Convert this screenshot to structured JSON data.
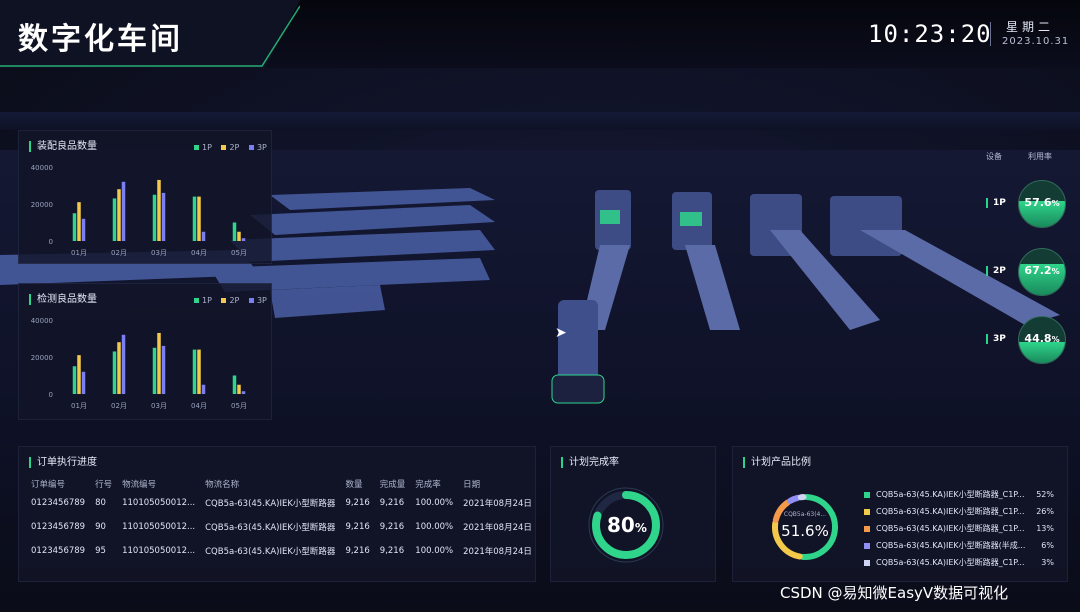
{
  "header": {
    "title": "数字化车间",
    "time": "10:23:20",
    "weekday": "星期二",
    "date": "2023.10.31"
  },
  "assembly_panel": {
    "title": "装配良品数量",
    "legend": [
      "1P",
      "2P",
      "3P"
    ]
  },
  "inspection_panel": {
    "title": "检测良品数量",
    "legend": [
      "1P",
      "2P",
      "3P"
    ]
  },
  "colors": {
    "p1": "#2fd58b",
    "p2": "#f3c94a",
    "p3": "#7b7ff2",
    "accent": "#2bd48b"
  },
  "chart_data": [
    {
      "type": "bar",
      "title": "装配良品数量",
      "categories": [
        "01月",
        "02月",
        "03月",
        "04月",
        "05月"
      ],
      "ylim": [
        0,
        40000
      ],
      "yticks": [
        "0",
        "20000",
        "40000"
      ],
      "series": [
        {
          "name": "1P",
          "values": [
            15000,
            23000,
            25000,
            24000,
            10000
          ]
        },
        {
          "name": "2P",
          "values": [
            21000,
            28000,
            33000,
            24000,
            5000
          ]
        },
        {
          "name": "3P",
          "values": [
            12000,
            32000,
            26000,
            5000,
            1500
          ]
        }
      ],
      "legend": "top-right",
      "grid": false
    },
    {
      "type": "bar",
      "title": "检测良品数量",
      "categories": [
        "01月",
        "02月",
        "03月",
        "04月",
        "05月"
      ],
      "ylim": [
        0,
        40000
      ],
      "yticks": [
        "0",
        "20000",
        "40000"
      ],
      "series": [
        {
          "name": "1P",
          "values": [
            15000,
            23000,
            25000,
            24000,
            10000
          ]
        },
        {
          "name": "2P",
          "values": [
            21000,
            28000,
            33000,
            24000,
            5000
          ]
        },
        {
          "name": "3P",
          "values": [
            12000,
            32000,
            26000,
            5000,
            1500
          ]
        }
      ],
      "legend": "top-right",
      "grid": false
    }
  ],
  "utilization": {
    "col_device": "设备",
    "col_rate": "利用率",
    "items": [
      {
        "label": "1P",
        "value": "57.6",
        "unit": "%",
        "level": 0.576
      },
      {
        "label": "2P",
        "value": "67.2",
        "unit": "%",
        "level": 0.672
      },
      {
        "label": "3P",
        "value": "44.8",
        "unit": "%",
        "level": 0.448
      }
    ]
  },
  "orders": {
    "title": "订单执行进度",
    "columns": [
      "订单编号",
      "行号",
      "物流编号",
      "物流名称",
      "数量",
      "完成量",
      "完成率",
      "日期"
    ],
    "rows": [
      [
        "0123456789",
        "80",
        "110105050012...",
        "CQB5a-63(45.KA)IEK小型断路器",
        "9,216",
        "9,216",
        "100.00%",
        "2021年08月24日"
      ],
      [
        "0123456789",
        "90",
        "110105050012...",
        "CQB5a-63(45.KA)IEK小型断路器",
        "9,216",
        "9,216",
        "100.00%",
        "2021年08月24日"
      ],
      [
        "0123456789",
        "95",
        "110105050012...",
        "CQB5a-63(45.KA)IEK小型断路器",
        "9,216",
        "9,216",
        "100.00%",
        "2021年08月24日"
      ]
    ]
  },
  "plan_completion": {
    "title": "计划完成率",
    "value": "80",
    "unit": "%",
    "level": 0.8
  },
  "product_ratio": {
    "title": "计划产品比例",
    "center_value": "51.6%",
    "center_label": "CQB5a-63(4...",
    "items": [
      {
        "name": "CQB5a-63(45.KA)IEK小型断路器_C1P...",
        "pct": "52%",
        "value": 52,
        "color": "#2fd58b"
      },
      {
        "name": "CQB5a-63(45.KA)IEK小型断路器_C1P...",
        "pct": "26%",
        "value": 26,
        "color": "#f3c94a"
      },
      {
        "name": "CQB5a-63(45.KA)IEK小型断路器_C1P...",
        "pct": "13%",
        "value": 13,
        "color": "#f59a4a"
      },
      {
        "name": "CQB5a-63(45.KA)IEK小型断路器(半成...",
        "pct": "6%",
        "value": 6,
        "color": "#8f8ff5"
      },
      {
        "name": "CQB5a-63(45.KA)IEK小型断路器_C1P...",
        "pct": "3%",
        "value": 3,
        "color": "#cfd4f2"
      }
    ]
  },
  "watermark": "CSDN @易知微EasyV数据可视化"
}
